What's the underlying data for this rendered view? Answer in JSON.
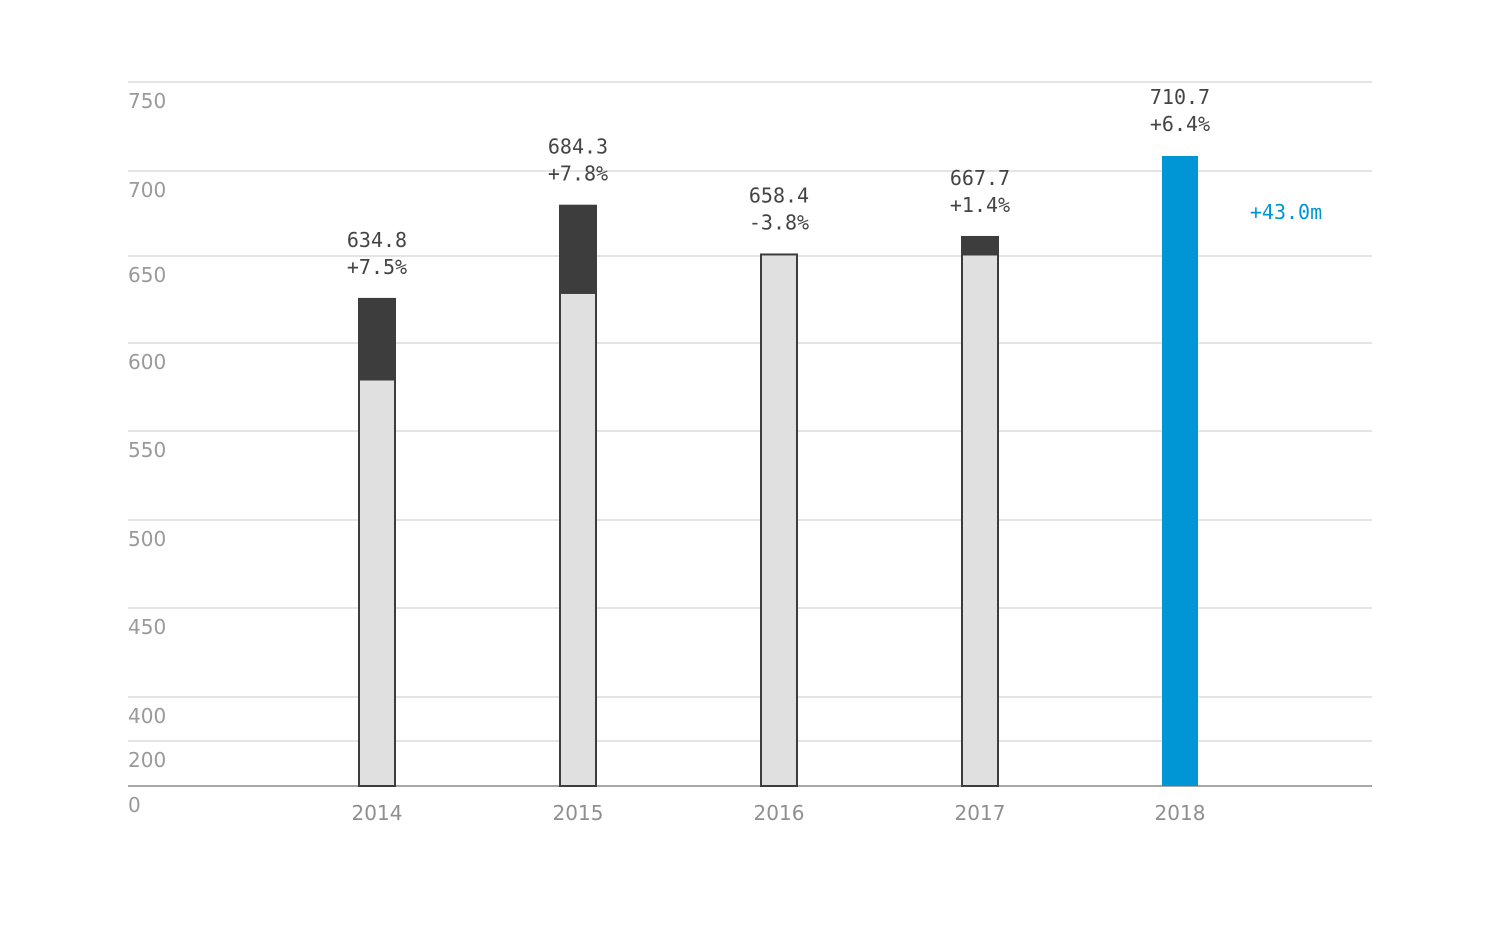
{
  "chart_data": {
    "type": "bar",
    "categories": [
      "2014",
      "2015",
      "2016",
      "2017",
      "2018"
    ],
    "y_ticks": [
      "750",
      "700",
      "650",
      "600",
      "550",
      "500",
      "450",
      "400",
      "200",
      "0"
    ],
    "ylim": [
      0,
      750
    ],
    "axis_break": true,
    "grid": true,
    "legend": "none",
    "title": "",
    "xlabel": "",
    "ylabel": "",
    "series": [
      {
        "values": [
          592.0,
          638.0,
          658.4,
          658.4,
          667.7
        ],
        "style": "base"
      },
      {
        "values": [
          42.8,
          46.3,
          0,
          9.3,
          43.0
        ],
        "style": "increase"
      }
    ],
    "totals": [
      634.8,
      684.3,
      658.4,
      667.7,
      710.7
    ],
    "value_labels": [
      "634.8",
      "684.3",
      "658.4",
      "667.7",
      "710.7"
    ],
    "change_labels": [
      "+7.5%",
      "+7.8%",
      "-3.8%",
      "+1.4%",
      "+6.4%"
    ],
    "highlight_index": 4,
    "annotation": {
      "text": "+43.0m",
      "category": "2018"
    },
    "colors": {
      "base_fill": "#e0e0e0",
      "base_stroke": "#3d3d3d",
      "increase_fill": "#3d3d3d",
      "highlight": "#0096d6",
      "grid": "#c8c8c8",
      "axis": "#8a8a8a"
    }
  }
}
